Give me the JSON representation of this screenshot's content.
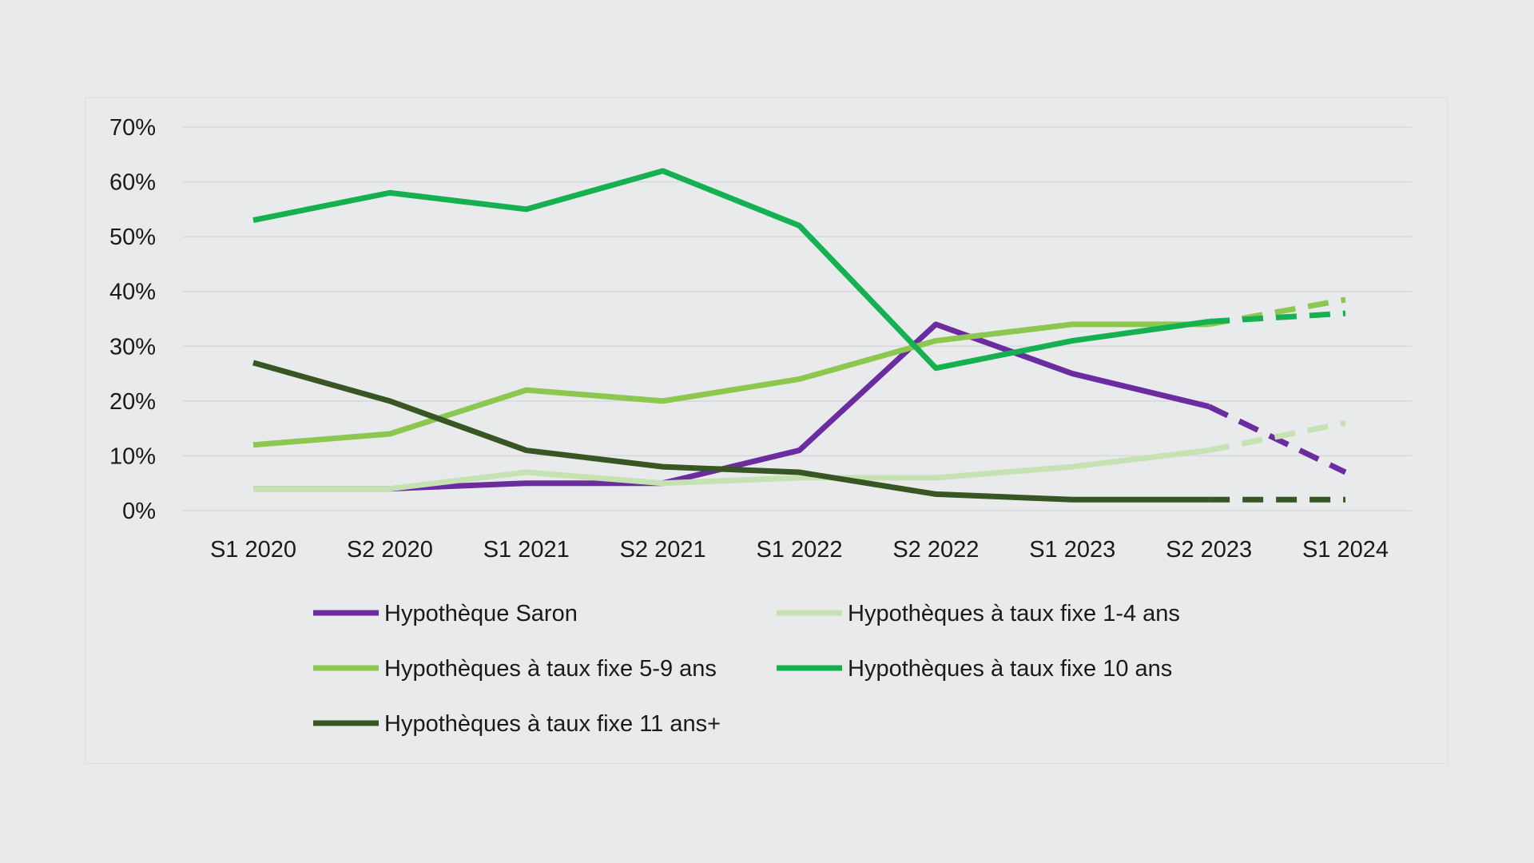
{
  "chart_data": {
    "type": "line",
    "title": "",
    "xlabel": "",
    "ylabel": "",
    "categories": [
      "S1 2020",
      "S2 2020",
      "S1 2021",
      "S2 2021",
      "S1 2022",
      "S2 2022",
      "S1 2023",
      "S2 2023",
      "S1 2024"
    ],
    "ylim": [
      0,
      70
    ],
    "yticks": [
      0,
      10,
      20,
      30,
      40,
      50,
      60,
      70
    ],
    "ytick_labels": [
      "0%",
      "10%",
      "20%",
      "30%",
      "40%",
      "50%",
      "60%",
      "70%"
    ],
    "grid": true,
    "legend_position": "bottom",
    "projection_note_style": "dashed segment from S2 2023 to S1 2024",
    "series": [
      {
        "name": "Hypothèque Saron",
        "color": "#6a2c9e",
        "values": [
          4,
          4,
          5,
          5,
          11,
          34,
          25,
          19,
          7
        ]
      },
      {
        "name": "Hypothèques à taux fixe 1-4 ans",
        "color": "#c6e2b3",
        "values": [
          4,
          4,
          7,
          5,
          6,
          6,
          8,
          11,
          16
        ]
      },
      {
        "name": "Hypothèques à taux fixe 5-9 ans",
        "color": "#8cc850",
        "values": [
          12,
          14,
          22,
          20,
          24,
          31,
          34,
          34,
          38.5
        ]
      },
      {
        "name": "Hypothèques à taux fixe 10 ans",
        "color": "#15b050",
        "values": [
          53,
          58,
          55,
          62,
          52,
          26,
          31,
          34.5,
          36
        ]
      },
      {
        "name": "Hypothèques à taux fixe 11 ans+",
        "color": "#375623",
        "values": [
          27,
          20,
          11,
          8,
          7,
          3,
          2,
          2,
          2
        ]
      }
    ]
  }
}
